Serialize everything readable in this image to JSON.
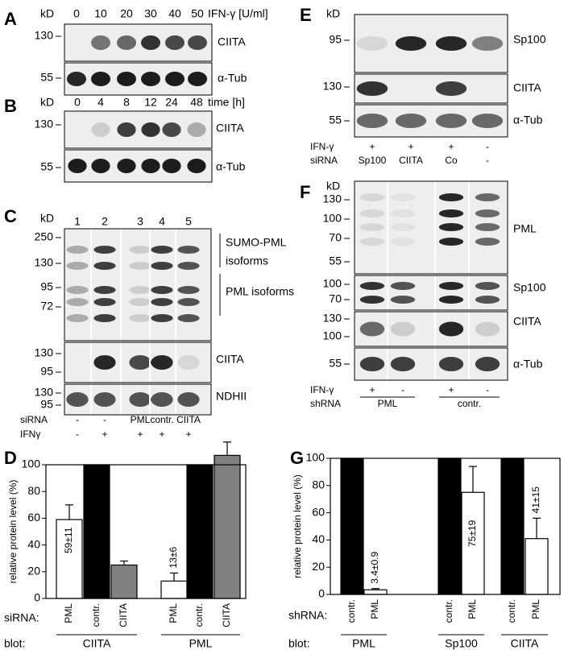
{
  "panel_a": {
    "label": "A",
    "unit": "kD",
    "lanes": [
      "0",
      "10",
      "20",
      "30",
      "40",
      "50"
    ],
    "condition": "IFN-γ [U/ml]",
    "blots": [
      {
        "markers": [
          "130"
        ],
        "protein": "CIITA"
      },
      {
        "markers": [
          "55"
        ],
        "protein": "α-Tub"
      }
    ]
  },
  "panel_b": {
    "label": "B",
    "unit": "kD",
    "lanes": [
      "0",
      "4",
      "8",
      "12",
      "24",
      "48"
    ],
    "condition": "time [h]",
    "blots": [
      {
        "markers": [
          "130"
        ],
        "protein": "CIITA"
      },
      {
        "markers": [
          "55"
        ],
        "protein": "α-Tub"
      }
    ]
  },
  "panel_c": {
    "label": "C",
    "unit": "kD",
    "lanes": [
      "1",
      "2",
      "3",
      "4",
      "5"
    ],
    "blots": [
      {
        "markers": [
          "250",
          "130",
          "95",
          "72"
        ],
        "annotations": [
          "SUMO-PML",
          "isoforms",
          "PML isoforms"
        ]
      },
      {
        "markers": [
          "130",
          "95"
        ],
        "protein": "CIITA"
      },
      {
        "markers": [
          "130",
          "95"
        ],
        "protein": "NDHII"
      }
    ],
    "rows": [
      {
        "name": "siRNA",
        "values": [
          "-",
          "-",
          "PML",
          "contr.",
          "CIITA"
        ]
      },
      {
        "name": "IFNγ",
        "values": [
          "-",
          "+",
          "+",
          "+",
          "+"
        ]
      }
    ]
  },
  "panel_e": {
    "label": "E",
    "unit": "kD",
    "blots": [
      {
        "markers": [
          "95"
        ],
        "protein": "Sp100"
      },
      {
        "markers": [
          "130"
        ],
        "protein": "CIITA"
      },
      {
        "markers": [
          "55"
        ],
        "protein": "α-Tub"
      }
    ],
    "rows": [
      {
        "name": "IFN-γ",
        "values": [
          "+",
          "+",
          "+",
          "-"
        ]
      },
      {
        "name": "siRNA",
        "values": [
          "Sp100",
          "CIITA",
          "Co",
          "-"
        ]
      }
    ]
  },
  "panel_f": {
    "label": "F",
    "unit": "kD",
    "blots": [
      {
        "markers": [
          "130",
          "100",
          "70",
          "55"
        ],
        "protein": "PML"
      },
      {
        "markers": [
          "100",
          "70"
        ],
        "protein": "Sp100"
      },
      {
        "markers": [
          "130",
          "100"
        ],
        "protein": "CIITA"
      },
      {
        "markers": [
          "55"
        ],
        "protein": "α-Tub"
      }
    ],
    "rows": [
      {
        "name": "IFN-γ",
        "values": [
          "+",
          "-",
          "+",
          "-"
        ]
      },
      {
        "name": "shRNA",
        "values": [
          "PML",
          "contr."
        ]
      }
    ]
  },
  "chart_data": [
    {
      "type": "bar",
      "panel_label": "D",
      "ylabel": "relative protein level (%)",
      "ylim": [
        0,
        100
      ],
      "yticks": [
        0,
        20,
        40,
        60,
        80,
        100
      ],
      "categories": [
        "PML",
        "contr.",
        "CIITA",
        "PML",
        "contr.",
        "CIITA"
      ],
      "category_title": "siRNA:",
      "values": [
        59,
        100,
        25,
        13,
        100,
        107
      ],
      "errors": [
        11,
        null,
        3,
        6,
        null,
        10
      ],
      "value_labels": [
        "59±11",
        null,
        null,
        "13±6",
        null,
        null
      ],
      "colors": [
        "#ffffff",
        "#000000",
        "#808080",
        "#ffffff",
        "#000000",
        "#808080"
      ],
      "group_title": "blot:",
      "groups": [
        "CIITA",
        "PML"
      ]
    },
    {
      "type": "bar",
      "panel_label": "G",
      "ylabel": "relative protein level (%)",
      "ylim": [
        0,
        100
      ],
      "yticks": [
        0,
        20,
        40,
        60,
        80,
        100
      ],
      "categories": [
        "contr.",
        "PML",
        "contr.",
        "PML",
        "contr.",
        "PML"
      ],
      "category_title": "shRNA:",
      "values": [
        100,
        3.4,
        100,
        75,
        100,
        41
      ],
      "errors": [
        null,
        0.9,
        null,
        19,
        null,
        15
      ],
      "value_labels": [
        null,
        "3.4±0.9",
        null,
        "75±19",
        null,
        "41±15"
      ],
      "colors": [
        "#000000",
        "#ffffff",
        "#000000",
        "#ffffff",
        "#000000",
        "#ffffff"
      ],
      "group_title": "blot:",
      "groups": [
        "PML",
        "Sp100",
        "CIITA"
      ]
    }
  ]
}
